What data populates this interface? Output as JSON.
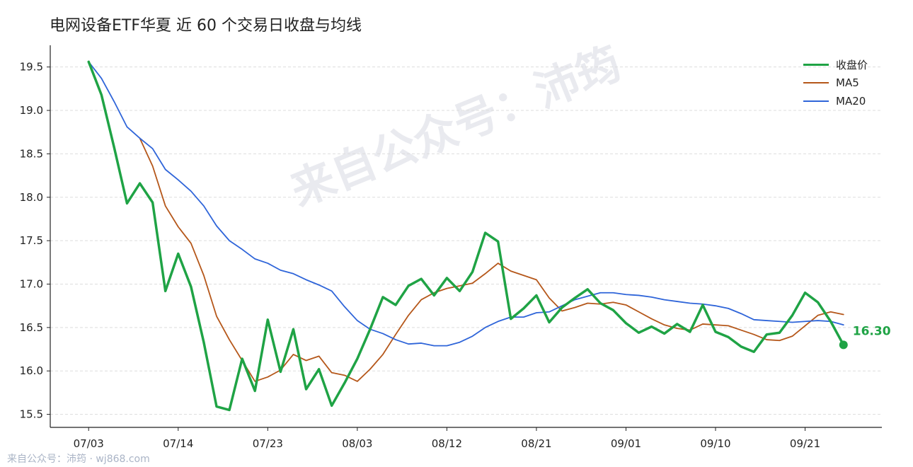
{
  "title": "电网设备ETF华夏 近 60 个交易日收盘与均线",
  "watermark": "来自公众号：沛筠",
  "footer": "来自公众号：沛筠 · wj868.com",
  "colors": {
    "close": "#1fa345",
    "ma5": "#b5571a",
    "ma20": "#2f65d9",
    "grid": "#dddddd",
    "axis": "#222222"
  },
  "chart_data": {
    "type": "line",
    "title": "电网设备ETF华夏 近 60 个交易日收盘与均线",
    "x": [
      0,
      1,
      2,
      3,
      4,
      5,
      6,
      7,
      8,
      9,
      10,
      11,
      12,
      13,
      14,
      15,
      16,
      17,
      18,
      19,
      20,
      21,
      22,
      23,
      24,
      25,
      26,
      27,
      28,
      29,
      30,
      31,
      32,
      33,
      34,
      35,
      36,
      37,
      38,
      39,
      40,
      41,
      42,
      43,
      44,
      45,
      46,
      47,
      48,
      49,
      50,
      51,
      52,
      53,
      54,
      55,
      56,
      57,
      58,
      59
    ],
    "xticks": [
      {
        "x": 0,
        "label": "07/03"
      },
      {
        "x": 7,
        "label": "07/14"
      },
      {
        "x": 14,
        "label": "07/23"
      },
      {
        "x": 21,
        "label": "08/03"
      },
      {
        "x": 28,
        "label": "08/12"
      },
      {
        "x": 35,
        "label": "08/21"
      },
      {
        "x": 42,
        "label": "09/01"
      },
      {
        "x": 49,
        "label": "09/10"
      },
      {
        "x": 56,
        "label": "09/21"
      }
    ],
    "yticks": [
      15.5,
      16.0,
      16.5,
      17.0,
      17.5,
      18.0,
      18.5,
      19.0,
      19.5
    ],
    "ylim": [
      15.35,
      19.75
    ],
    "xlim": [
      -3,
      62
    ],
    "grid": "horizontal dashed",
    "legend_position": "top-right",
    "series": [
      {
        "name": "收盘价",
        "color": "#1fa345",
        "values": [
          19.56,
          19.18,
          18.57,
          17.93,
          18.16,
          17.94,
          16.92,
          17.35,
          16.97,
          16.33,
          15.59,
          15.55,
          16.14,
          15.77,
          16.59,
          15.99,
          16.48,
          15.79,
          16.02,
          15.6,
          15.86,
          16.14,
          16.48,
          16.85,
          16.76,
          16.98,
          17.06,
          16.87,
          17.07,
          16.92,
          17.14,
          17.59,
          17.49,
          16.6,
          16.72,
          16.87,
          16.56,
          16.73,
          16.84,
          16.94,
          16.78,
          16.7,
          16.55,
          16.44,
          16.51,
          16.43,
          16.54,
          16.45,
          16.76,
          16.45,
          16.39,
          16.28,
          16.22,
          16.42,
          16.44,
          16.64,
          16.9,
          16.79,
          16.57,
          16.3
        ]
      },
      {
        "name": "MA5",
        "color": "#b5571a",
        "values": [
          null,
          null,
          null,
          null,
          18.68,
          18.36,
          17.9,
          17.66,
          17.47,
          17.1,
          16.63,
          16.36,
          16.12,
          15.88,
          15.93,
          16.01,
          16.19,
          16.12,
          16.17,
          15.98,
          15.95,
          15.88,
          16.02,
          16.19,
          16.42,
          16.64,
          16.82,
          16.9,
          16.95,
          16.98,
          17.01,
          17.12,
          17.24,
          17.15,
          17.1,
          17.05,
          16.84,
          16.69,
          16.73,
          16.78,
          16.77,
          16.79,
          16.76,
          16.68,
          16.6,
          16.53,
          16.49,
          16.47,
          16.54,
          16.53,
          16.52,
          16.47,
          16.42,
          16.36,
          16.35,
          16.4,
          16.52,
          16.64,
          16.68,
          16.65
        ]
      },
      {
        "name": "MA20",
        "color": "#2f65d9",
        "values": [
          19.56,
          19.37,
          19.1,
          18.81,
          18.68,
          18.56,
          18.32,
          18.2,
          18.07,
          17.9,
          17.67,
          17.5,
          17.4,
          17.29,
          17.24,
          17.16,
          17.12,
          17.05,
          16.99,
          16.92,
          16.74,
          16.58,
          16.48,
          16.43,
          16.36,
          16.31,
          16.32,
          16.29,
          16.29,
          16.33,
          16.4,
          16.5,
          16.57,
          16.62,
          16.62,
          16.67,
          16.68,
          16.75,
          16.82,
          16.86,
          16.9,
          16.9,
          16.88,
          16.87,
          16.85,
          16.82,
          16.8,
          16.78,
          16.77,
          16.75,
          16.72,
          16.66,
          16.59,
          16.58,
          16.57,
          16.56,
          16.57,
          16.58,
          16.57,
          16.53
        ]
      }
    ],
    "last_value_label": "16.30"
  }
}
